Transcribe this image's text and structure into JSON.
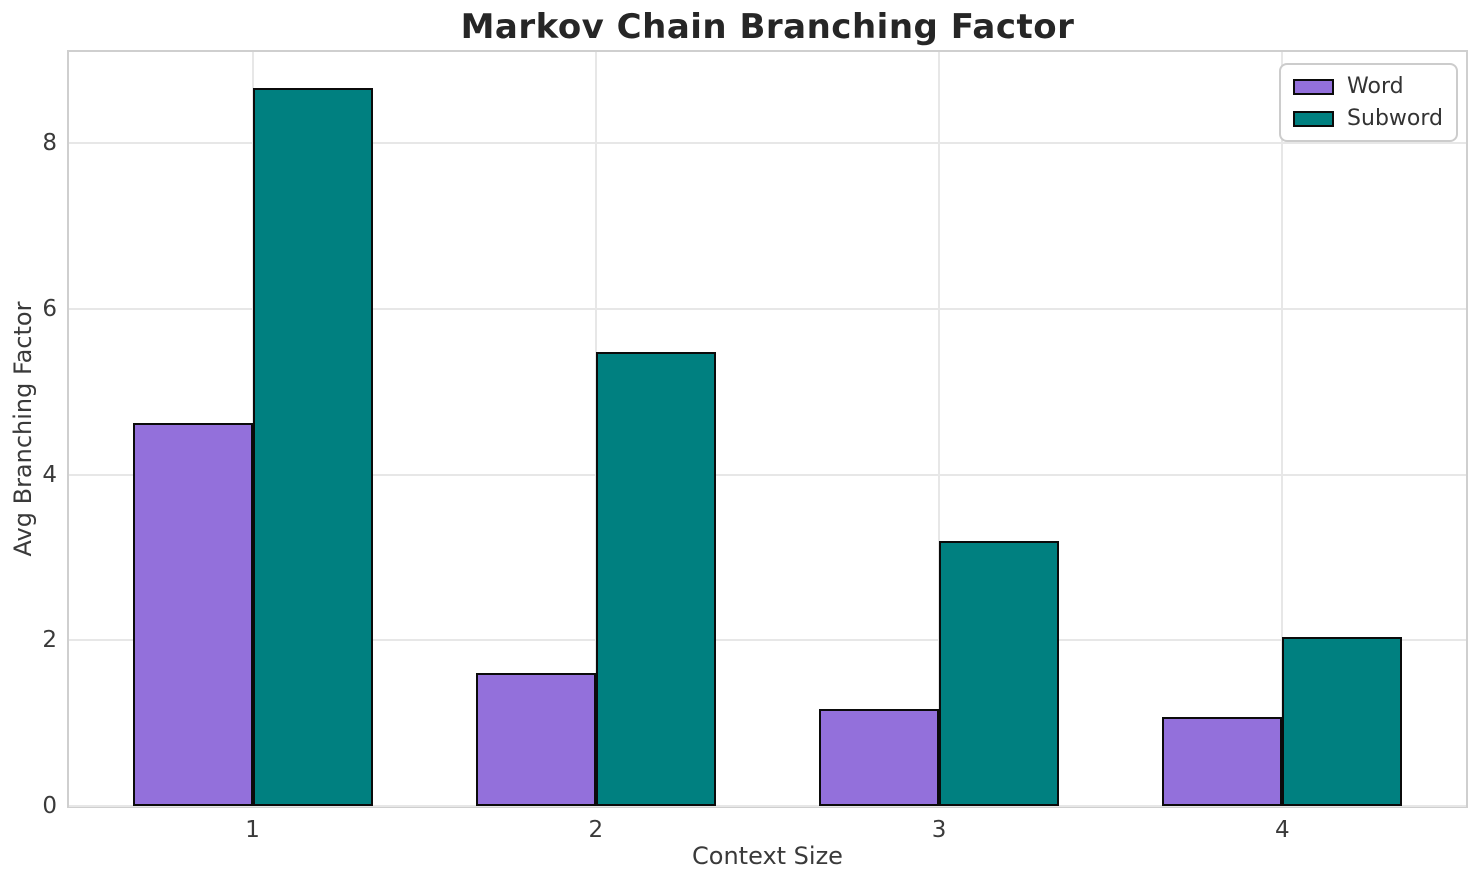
{
  "chart_data": {
    "type": "bar",
    "title": "Markov Chain Branching Factor",
    "xlabel": "Context Size",
    "ylabel": "Avg Branching Factor",
    "categories": [
      "1",
      "2",
      "3",
      "4"
    ],
    "series": [
      {
        "name": "Word",
        "color": "#9370DB",
        "values": [
          4.62,
          1.6,
          1.17,
          1.07
        ]
      },
      {
        "name": "Subword",
        "color": "#008080",
        "values": [
          8.66,
          5.48,
          3.2,
          2.04
        ]
      }
    ],
    "bar_width": 0.35,
    "bar_edge_color": "#0b0b0b",
    "yticks": [
      0,
      2,
      4,
      6,
      8
    ],
    "ylim": [
      0,
      9.1
    ],
    "xlim": [
      -0.535,
      3.535
    ],
    "grid": true,
    "legend_position": "upper right"
  },
  "styles": {
    "grid_color": "#e7e7e7",
    "spine_color": "#cfcfcf",
    "tick_text_color": "#3a3a3a",
    "title_color": "#262626",
    "legend_border_color": "#cccccc",
    "background_color": "#ffffff"
  }
}
